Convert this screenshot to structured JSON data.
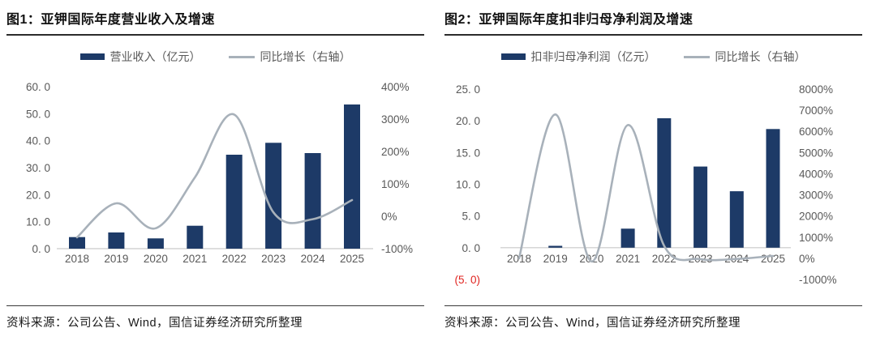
{
  "page": {
    "background": "#ffffff",
    "source_note": "资料来源：公司公告、Wind，国信证券经济研究所整理"
  },
  "chart_data": [
    {
      "type": "bar",
      "subtype": "bar+line combo, line on secondary axis",
      "title": "图1：亚钾国际年度营业收入及增速",
      "categories": [
        "2018",
        "2019",
        "2020",
        "2021",
        "2022",
        "2023",
        "2024",
        "2025"
      ],
      "series": [
        {
          "name": "营业收入（亿元）",
          "type": "bar",
          "axis": "left",
          "values": [
            4.3,
            6.0,
            3.8,
            8.5,
            34.8,
            39.2,
            35.4,
            53.4
          ]
        },
        {
          "name": "同比增长（右轴）",
          "type": "line",
          "axis": "right",
          "unit": "%",
          "values": [
            -65,
            40,
            -37,
            120,
            314,
            12,
            -9,
            50
          ]
        }
      ],
      "left_axis": {
        "min": 0,
        "max": 60,
        "ticks": [
          {
            "label": "60. 0",
            "value": 60
          },
          {
            "label": "50. 0",
            "value": 50
          },
          {
            "label": "40. 0",
            "value": 40
          },
          {
            "label": "30. 0",
            "value": 30
          },
          {
            "label": "20. 0",
            "value": 20
          },
          {
            "label": "10. 0",
            "value": 10
          },
          {
            "label": "0. 0",
            "value": 0
          }
        ]
      },
      "right_axis": {
        "min": -100,
        "max": 400,
        "ticks": [
          {
            "label": "400%",
            "value": 400
          },
          {
            "label": "300%",
            "value": 300
          },
          {
            "label": "200%",
            "value": 200
          },
          {
            "label": "100%",
            "value": 100
          },
          {
            "label": "0%",
            "value": 0
          },
          {
            "label": "-100%",
            "value": -100
          }
        ]
      },
      "grid": "off",
      "legend_position": "top-center",
      "colors": {
        "bar": "#1d3a67",
        "line": "#a8b1ba",
        "axis_line": "#c9c9c9",
        "tick_text": "#595959",
        "negative_label": "#e02420"
      }
    },
    {
      "type": "bar",
      "subtype": "bar+line combo, line on secondary axis",
      "title": "图2：亚钾国际年度扣非归母净利润及增速",
      "categories": [
        "2018",
        "2019",
        "2020",
        "2021",
        "2022",
        "2023",
        "2024",
        "2025"
      ],
      "series": [
        {
          "name": "扣非归母净利润（亿元）",
          "type": "bar",
          "axis": "left",
          "values": [
            0.0,
            0.3,
            0.0,
            3.0,
            20.4,
            12.8,
            8.9,
            18.7
          ]
        },
        {
          "name": "同比增长（右轴）",
          "type": "line",
          "axis": "right",
          "unit": "%",
          "values": [
            0,
            6800,
            -150,
            6300,
            590,
            -40,
            -30,
            110
          ]
        }
      ],
      "left_axis": {
        "min": -5,
        "max": 25,
        "ticks": [
          {
            "label": "25. 0",
            "value": 25
          },
          {
            "label": "20. 0",
            "value": 20
          },
          {
            "label": "15. 0",
            "value": 15
          },
          {
            "label": "10. 0",
            "value": 10
          },
          {
            "label": "5. 0",
            "value": 5
          },
          {
            "label": "0. 0",
            "value": 0
          },
          {
            "label": "(5. 0)",
            "value": -5,
            "negative_style": true
          }
        ]
      },
      "right_axis": {
        "min": -1000,
        "max": 8000,
        "ticks": [
          {
            "label": "8000%",
            "value": 8000
          },
          {
            "label": "7000%",
            "value": 7000
          },
          {
            "label": "6000%",
            "value": 6000
          },
          {
            "label": "5000%",
            "value": 5000
          },
          {
            "label": "4000%",
            "value": 4000
          },
          {
            "label": "3000%",
            "value": 3000
          },
          {
            "label": "2000%",
            "value": 2000
          },
          {
            "label": "1000%",
            "value": 1000
          },
          {
            "label": "0%",
            "value": 0
          },
          {
            "label": "-1000%",
            "value": -1000
          }
        ]
      },
      "grid": "off",
      "legend_position": "top-center",
      "colors": {
        "bar": "#1d3a67",
        "line": "#a8b1ba",
        "axis_line": "#c9c9c9",
        "tick_text": "#595959",
        "negative_label": "#e02420"
      }
    }
  ]
}
